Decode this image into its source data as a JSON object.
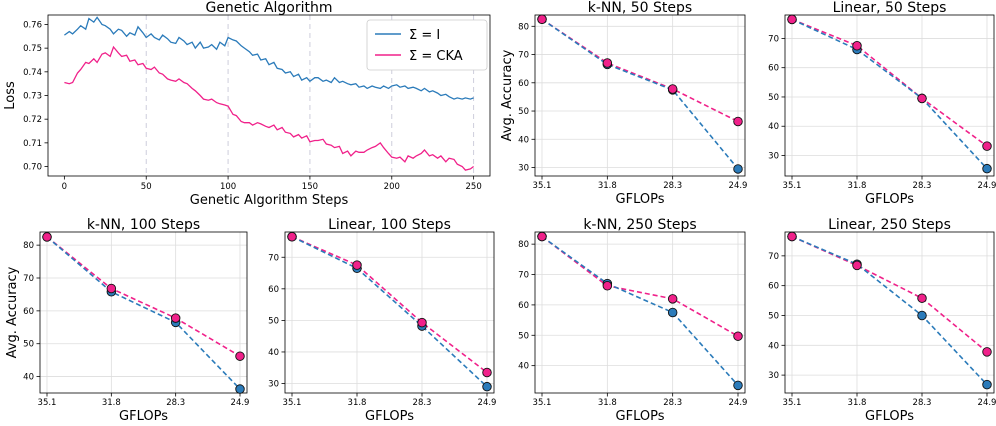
{
  "colors": {
    "blue": "#2b7bba",
    "pink": "#f0218a",
    "grid": "#dddddd",
    "vline": "#c8c8d8"
  },
  "chart_data": [
    {
      "id": "ga",
      "type": "line",
      "title": "Genetic Algorithm",
      "xlabel": "Genetic Algorithm Steps",
      "ylabel": "Loss",
      "xlim": [
        -10,
        260
      ],
      "ylim": [
        0.696,
        0.764
      ],
      "xticks": [
        0,
        50,
        100,
        150,
        200,
        250
      ],
      "xtick_labels": [
        "0",
        "50",
        "100",
        "150",
        "200",
        "250"
      ],
      "yticks": [
        0.7,
        0.71,
        0.72,
        0.73,
        0.74,
        0.75,
        0.76
      ],
      "ytick_labels": [
        "0.70",
        "0.71",
        "0.72",
        "0.73",
        "0.74",
        "0.75",
        "0.76"
      ],
      "vlines": [
        50,
        100,
        150,
        200,
        250
      ],
      "legend": {
        "position": "top-right",
        "entries": [
          "Σ = I",
          "Σ =  CKA"
        ]
      },
      "series": [
        {
          "name": "Σ = I",
          "color": "blue",
          "x": [
            0,
            3,
            5,
            8,
            10,
            13,
            15,
            18,
            20,
            23,
            25,
            28,
            30,
            33,
            35,
            38,
            40,
            43,
            45,
            48,
            50,
            53,
            55,
            58,
            60,
            63,
            65,
            68,
            70,
            73,
            75,
            78,
            80,
            83,
            85,
            88,
            90,
            93,
            95,
            98,
            100,
            103,
            105,
            108,
            110,
            113,
            115,
            118,
            120,
            123,
            125,
            128,
            130,
            133,
            135,
            138,
            140,
            143,
            145,
            148,
            150,
            153,
            155,
            158,
            160,
            163,
            165,
            168,
            170,
            173,
            175,
            178,
            180,
            183,
            185,
            188,
            190,
            193,
            195,
            198,
            200,
            203,
            205,
            208,
            210,
            213,
            215,
            218,
            220,
            223,
            225,
            228,
            230,
            233,
            235,
            238,
            240,
            243,
            245,
            248,
            250
          ],
          "values": [
            0.7555,
            0.757,
            0.756,
            0.758,
            0.7595,
            0.758,
            0.7625,
            0.761,
            0.763,
            0.76,
            0.7595,
            0.758,
            0.756,
            0.758,
            0.7575,
            0.755,
            0.7565,
            0.7555,
            0.759,
            0.7565,
            0.7545,
            0.756,
            0.7545,
            0.7535,
            0.7555,
            0.754,
            0.7525,
            0.752,
            0.7545,
            0.753,
            0.7515,
            0.7525,
            0.75,
            0.7525,
            0.75,
            0.7505,
            0.7515,
            0.7495,
            0.7525,
            0.751,
            0.7545,
            0.7535,
            0.753,
            0.751,
            0.75,
            0.7485,
            0.747,
            0.7475,
            0.745,
            0.7455,
            0.743,
            0.744,
            0.7415,
            0.741,
            0.7395,
            0.74,
            0.738,
            0.739,
            0.7365,
            0.7375,
            0.736,
            0.7375,
            0.7375,
            0.736,
            0.7365,
            0.7355,
            0.7375,
            0.7355,
            0.736,
            0.735,
            0.7345,
            0.735,
            0.7335,
            0.734,
            0.733,
            0.734,
            0.7335,
            0.733,
            0.734,
            0.733,
            0.734,
            0.7345,
            0.7335,
            0.734,
            0.733,
            0.7335,
            0.733,
            0.732,
            0.733,
            0.7315,
            0.732,
            0.731,
            0.73,
            0.7305,
            0.7295,
            0.7285,
            0.729,
            0.7285,
            0.729,
            0.7285,
            0.729
          ]
        },
        {
          "name": "Σ =  CKA",
          "color": "pink",
          "x": [
            0,
            3,
            5,
            8,
            10,
            13,
            15,
            18,
            20,
            23,
            25,
            28,
            30,
            33,
            35,
            38,
            40,
            43,
            45,
            48,
            50,
            53,
            55,
            58,
            60,
            63,
            65,
            68,
            70,
            73,
            75,
            78,
            80,
            83,
            85,
            88,
            90,
            93,
            95,
            98,
            100,
            103,
            105,
            108,
            110,
            113,
            115,
            118,
            120,
            123,
            125,
            128,
            130,
            133,
            135,
            138,
            140,
            143,
            145,
            148,
            150,
            153,
            155,
            158,
            160,
            163,
            165,
            168,
            170,
            173,
            175,
            178,
            180,
            183,
            185,
            188,
            190,
            193,
            195,
            198,
            200,
            203,
            205,
            208,
            210,
            213,
            215,
            218,
            220,
            223,
            225,
            228,
            230,
            233,
            235,
            238,
            240,
            243,
            245,
            248,
            250
          ],
          "values": [
            0.7355,
            0.735,
            0.7355,
            0.7395,
            0.741,
            0.744,
            0.7435,
            0.7455,
            0.744,
            0.7475,
            0.748,
            0.7465,
            0.7505,
            0.748,
            0.7465,
            0.747,
            0.7445,
            0.745,
            0.743,
            0.7435,
            0.7415,
            0.741,
            0.742,
            0.7395,
            0.739,
            0.737,
            0.7365,
            0.736,
            0.737,
            0.7355,
            0.735,
            0.733,
            0.732,
            0.73,
            0.7285,
            0.728,
            0.7285,
            0.727,
            0.7265,
            0.726,
            0.7255,
            0.722,
            0.7215,
            0.719,
            0.7185,
            0.7185,
            0.7175,
            0.7185,
            0.718,
            0.717,
            0.7165,
            0.7175,
            0.7155,
            0.7165,
            0.7145,
            0.714,
            0.7125,
            0.7135,
            0.712,
            0.713,
            0.7105,
            0.711,
            0.711,
            0.7115,
            0.7095,
            0.709,
            0.708,
            0.7085,
            0.7055,
            0.7065,
            0.7045,
            0.7065,
            0.706,
            0.706,
            0.707,
            0.708,
            0.7085,
            0.71,
            0.708,
            0.7055,
            0.704,
            0.7035,
            0.704,
            0.702,
            0.7045,
            0.7035,
            0.7045,
            0.7055,
            0.707,
            0.7045,
            0.705,
            0.7035,
            0.7045,
            0.702,
            0.7035,
            0.703,
            0.701,
            0.7,
            0.6985,
            0.699,
            0.7
          ]
        }
      ]
    },
    {
      "id": "knn50",
      "type": "line",
      "title": "k-NN, 50 Steps",
      "xlabel": "GFLOPs",
      "ylabel": "Avg. Accuracy",
      "categories": [
        "35.1",
        "31.8",
        "28.3",
        "24.9"
      ],
      "ylim": [
        27,
        84
      ],
      "yticks": [
        30,
        40,
        50,
        60,
        70,
        80
      ],
      "series": [
        {
          "name": "Σ = I",
          "color": "blue",
          "values": [
            82.5,
            66.5,
            57.5,
            29.5
          ]
        },
        {
          "name": "Σ =  CKA",
          "color": "pink",
          "values": [
            82.5,
            67.0,
            57.8,
            46.3
          ]
        }
      ]
    },
    {
      "id": "lin50",
      "type": "line",
      "title": "Linear, 50 Steps",
      "xlabel": "GFLOPs",
      "ylabel": "",
      "categories": [
        "35.1",
        "31.8",
        "28.3",
        "24.9"
      ],
      "ylim": [
        23,
        78
      ],
      "yticks": [
        30,
        40,
        50,
        60,
        70
      ],
      "series": [
        {
          "name": "Σ = I",
          "color": "blue",
          "values": [
            76.5,
            66.2,
            49.5,
            25.5
          ]
        },
        {
          "name": "Σ =  CKA",
          "color": "pink",
          "values": [
            76.5,
            67.5,
            49.5,
            33.2
          ]
        }
      ]
    },
    {
      "id": "knn100",
      "type": "line",
      "title": "k-NN, 100 Steps",
      "xlabel": "GFLOPs",
      "ylabel": "Avg. Accuracy",
      "categories": [
        "35.1",
        "31.8",
        "28.3",
        "24.9"
      ],
      "ylim": [
        35,
        84
      ],
      "yticks": [
        40,
        50,
        60,
        70,
        80
      ],
      "series": [
        {
          "name": "Σ = I",
          "color": "blue",
          "values": [
            82.5,
            65.8,
            56.5,
            36.2
          ]
        },
        {
          "name": "Σ =  CKA",
          "color": "pink",
          "values": [
            82.5,
            66.8,
            57.8,
            46.2
          ]
        }
      ]
    },
    {
      "id": "lin100",
      "type": "line",
      "title": "Linear, 100 Steps",
      "xlabel": "GFLOPs",
      "ylabel": "",
      "categories": [
        "35.1",
        "31.8",
        "28.3",
        "24.9"
      ],
      "ylim": [
        27,
        78
      ],
      "yticks": [
        30,
        40,
        50,
        60,
        70
      ],
      "series": [
        {
          "name": "Σ = I",
          "color": "blue",
          "values": [
            76.5,
            66.5,
            48.2,
            29.0
          ]
        },
        {
          "name": "Σ =  CKA",
          "color": "pink",
          "values": [
            76.5,
            67.5,
            49.3,
            33.5
          ]
        }
      ]
    },
    {
      "id": "knn250",
      "type": "line",
      "title": "k-NN, 250 Steps",
      "xlabel": "GFLOPs",
      "ylabel": "",
      "categories": [
        "35.1",
        "31.8",
        "28.3",
        "24.9"
      ],
      "ylim": [
        31,
        84
      ],
      "yticks": [
        40,
        50,
        60,
        70,
        80
      ],
      "series": [
        {
          "name": "Σ = I",
          "color": "blue",
          "values": [
            82.5,
            67.0,
            57.5,
            33.5
          ]
        },
        {
          "name": "Σ =  CKA",
          "color": "pink",
          "values": [
            82.5,
            66.3,
            62.0,
            49.7
          ]
        }
      ]
    },
    {
      "id": "lin250",
      "type": "line",
      "title": "Linear, 250 Steps",
      "xlabel": "GFLOPs",
      "ylabel": "",
      "categories": [
        "35.1",
        "31.8",
        "28.3",
        "24.9"
      ],
      "ylim": [
        24,
        78
      ],
      "yticks": [
        30,
        40,
        50,
        60,
        70
      ],
      "series": [
        {
          "name": "Σ = I",
          "color": "blue",
          "values": [
            76.5,
            67.2,
            50.0,
            26.8
          ]
        },
        {
          "name": "Σ =  CKA",
          "color": "pink",
          "values": [
            76.5,
            66.8,
            55.8,
            37.8
          ]
        }
      ]
    }
  ]
}
